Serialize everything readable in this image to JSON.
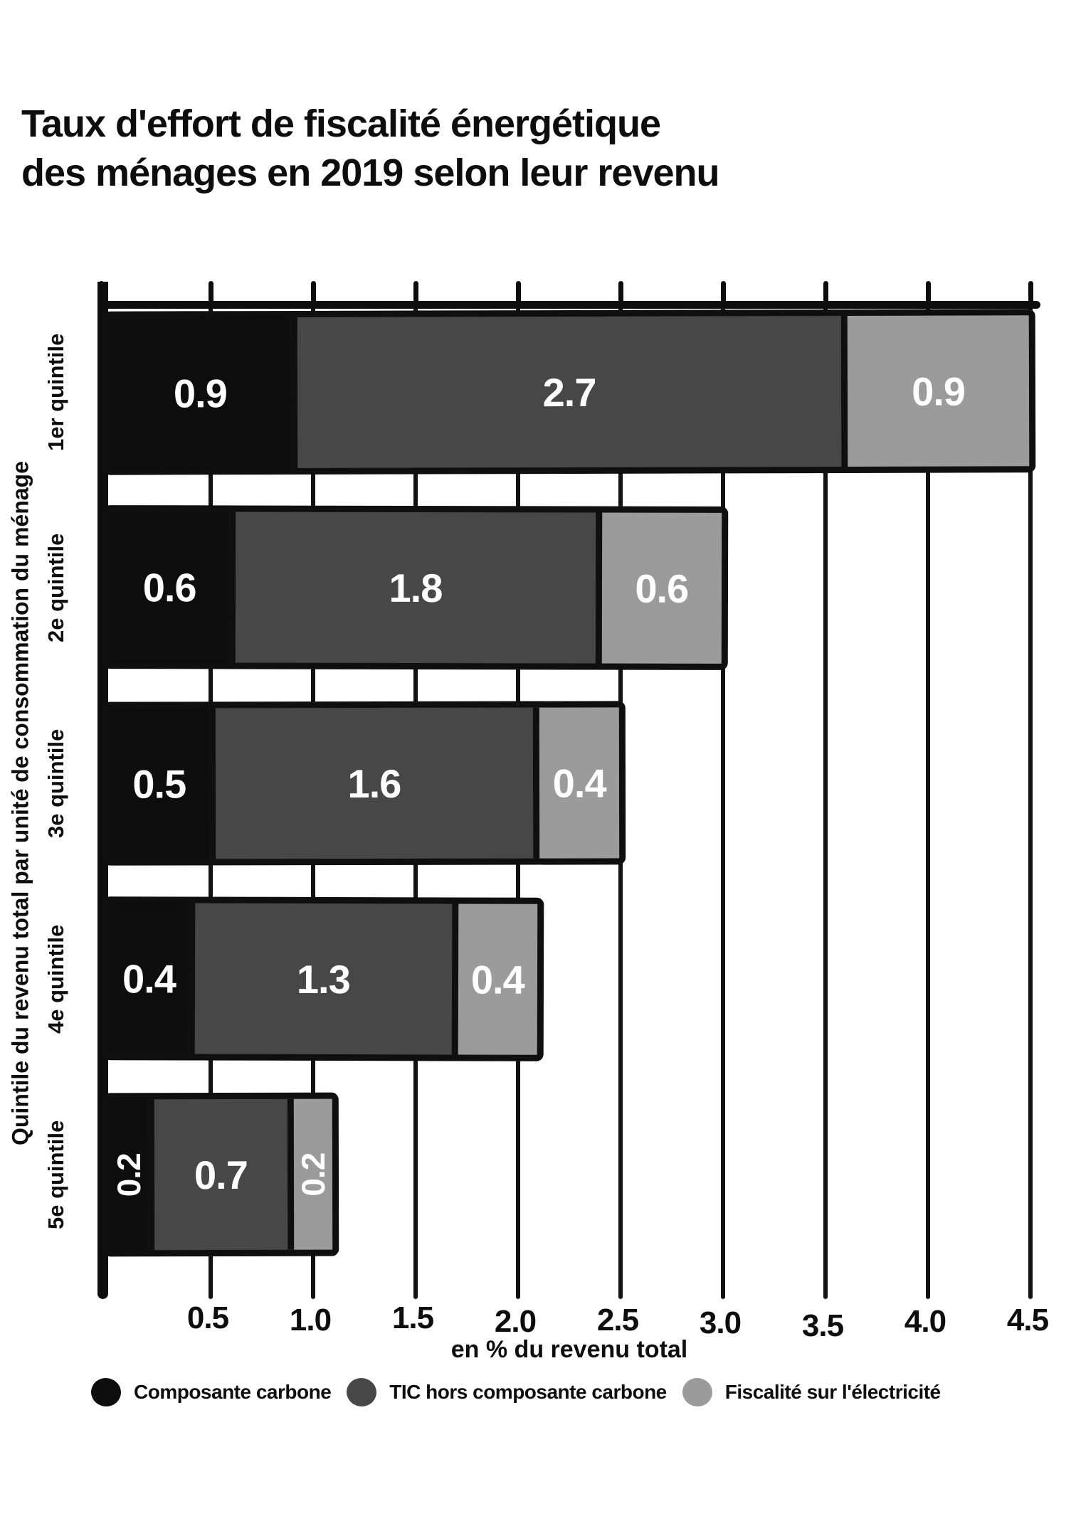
{
  "title": {
    "line1": "Taux d'effort de fiscalité énergétique",
    "line2": "des ménages en 2019 selon leur revenu"
  },
  "chart_data": {
    "type": "bar",
    "orientation": "horizontal",
    "stacked": true,
    "title": "Taux d'effort de fiscalité énergétique des ménages en 2019 selon leur revenu",
    "categories": [
      "1er quintile",
      "2e quintile",
      "3e quintile",
      "4e quintile",
      "5e quintile"
    ],
    "series": [
      {
        "name": "Composante carbone",
        "color": "#0d0d0d",
        "values": [
          0.9,
          0.6,
          0.5,
          0.4,
          0.2
        ]
      },
      {
        "name": "TIC hors composante carbone",
        "color": "#474747",
        "values": [
          2.7,
          1.8,
          1.6,
          1.3,
          0.7
        ]
      },
      {
        "name": "Fiscalité sur l'électricité",
        "color": "#9b9b9b",
        "values": [
          0.9,
          0.6,
          0.4,
          0.4,
          0.2
        ]
      }
    ],
    "value_labels_shown": true,
    "value_label_color": "#ffffff",
    "xlabel": "en % du revenu total",
    "ylabel": "Quintile du revenu total par unité de consommation du ménage",
    "xlim": [
      0,
      4.5
    ],
    "xtick_labels": [
      "0.5",
      "1.0",
      "1.5",
      "2.0",
      "2.5",
      "3.0",
      "3.5",
      "4.0",
      "4.5"
    ],
    "grid": true,
    "legend_position": "bottom",
    "axis_color": "#0d0d0d",
    "background_color": "#ffffff"
  }
}
